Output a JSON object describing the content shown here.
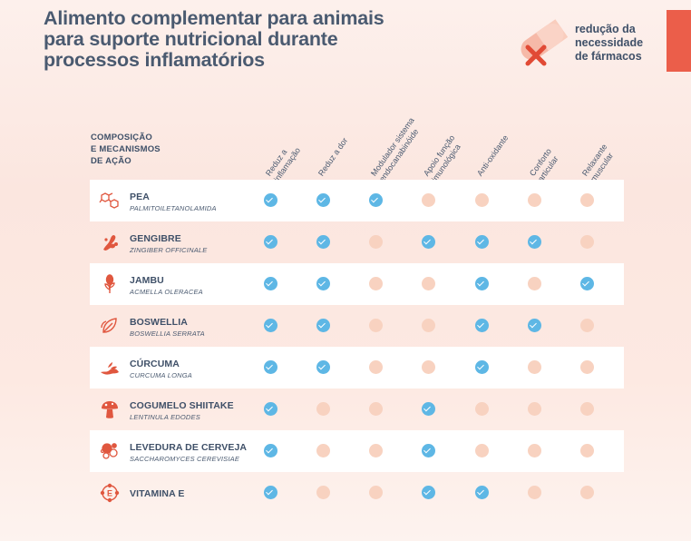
{
  "title": "Alimento complementar para animais para suporte nutricional durante processos inflamatórios",
  "reduction_note": [
    "redução da",
    "necessidade",
    "de fármacos"
  ],
  "composition_header": [
    "COMPOSIÇÃO",
    "E MECANISMOS",
    "DE AÇÃO"
  ],
  "columns": [
    {
      "line1": "Reduz a",
      "line2": "inflamação"
    },
    {
      "line1": "Reduz a dor",
      "line2": ""
    },
    {
      "line1": "Modulador sistema",
      "line2": "endocanabinóide"
    },
    {
      "line1": "Apoio função",
      "line2": "imunológica"
    },
    {
      "line1": "Anti-oxidante",
      "line2": ""
    },
    {
      "line1": "Conforto",
      "line2": "articular"
    },
    {
      "line1": "Relaxante",
      "line2": "muscular"
    }
  ],
  "rows": [
    {
      "name": "PEA",
      "sci": "PALMITOILETANOLAMIDA",
      "icon": "molecule-icon",
      "checks": [
        true,
        true,
        true,
        false,
        false,
        false,
        false
      ]
    },
    {
      "name": "GENGIBRE",
      "sci": "ZINGIBER OFFICINALE",
      "icon": "ginger-icon",
      "checks": [
        true,
        true,
        false,
        true,
        true,
        true,
        false
      ]
    },
    {
      "name": "JAMBU",
      "sci": "ACMELLA OLERACEA",
      "icon": "jambu-flower-icon",
      "checks": [
        true,
        true,
        false,
        false,
        true,
        false,
        true
      ]
    },
    {
      "name": "BOSWELLIA",
      "sci": "BOSWELLIA SERRATA",
      "icon": "leaf-icon",
      "checks": [
        true,
        true,
        false,
        false,
        true,
        true,
        false
      ]
    },
    {
      "name": "CÚRCUMA",
      "sci": "CURCUMA LONGA",
      "icon": "turmeric-icon",
      "checks": [
        true,
        true,
        false,
        false,
        true,
        false,
        false
      ]
    },
    {
      "name": "COGUMELO SHIITAKE",
      "sci": "LENTINULA EDODES",
      "icon": "mushroom-icon",
      "checks": [
        true,
        false,
        false,
        true,
        false,
        false,
        false
      ]
    },
    {
      "name": "LEVEDURA DE CERVEJA",
      "sci": "SACCHAROMYCES CEREVISIAE",
      "icon": "yeast-icon",
      "checks": [
        true,
        false,
        false,
        true,
        false,
        false,
        false
      ]
    },
    {
      "name": "VITAMINA E",
      "sci": "",
      "icon": "vitamin-e-icon",
      "checks": [
        true,
        false,
        false,
        true,
        true,
        false,
        false
      ]
    }
  ]
}
